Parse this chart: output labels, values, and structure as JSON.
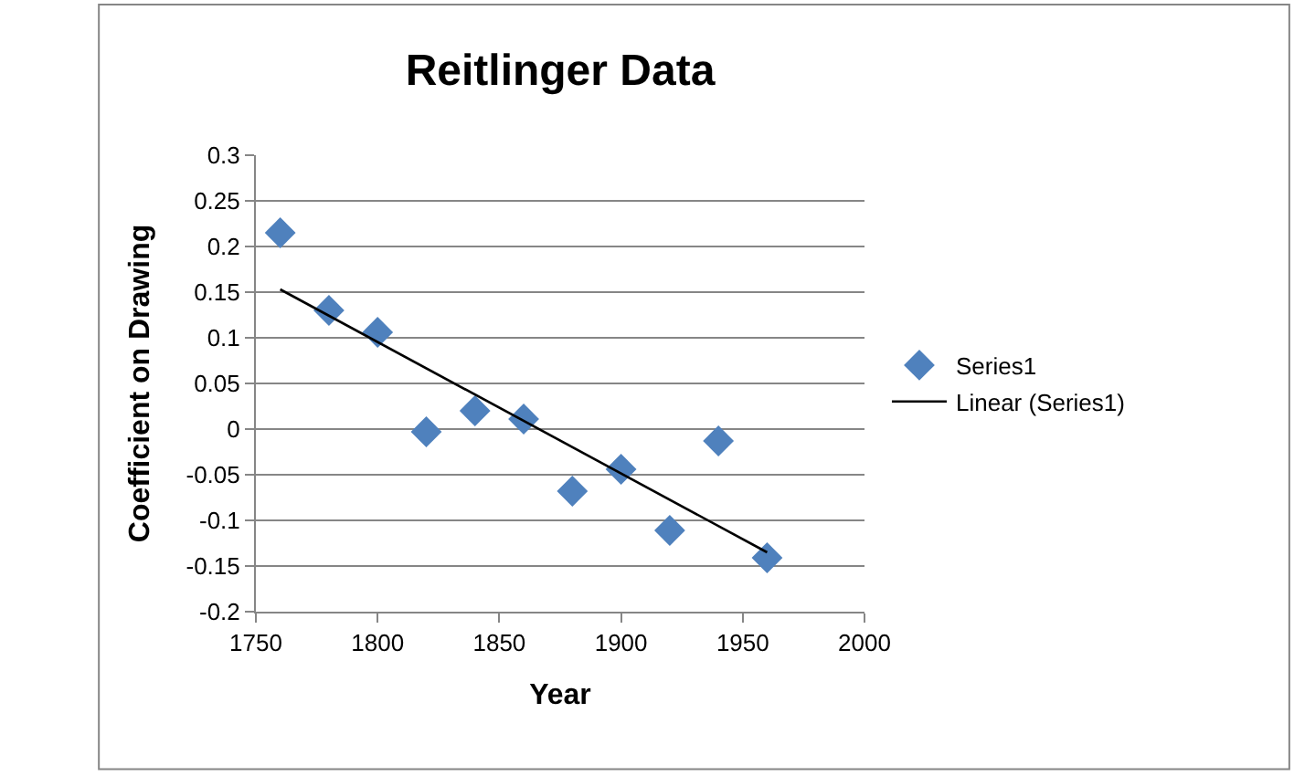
{
  "chart_data": {
    "type": "scatter",
    "title": "Reitlinger Data",
    "xlabel": "Year",
    "ylabel": "Coefficient on Drawing",
    "x": [
      1760,
      1780,
      1800,
      1820,
      1840,
      1860,
      1880,
      1900,
      1920,
      1940,
      1960
    ],
    "series": [
      {
        "name": "Series1",
        "color": "#4f81bd",
        "marker": "diamond",
        "values": [
          0.215,
          0.13,
          0.106,
          -0.003,
          0.02,
          0.011,
          -0.068,
          -0.044,
          -0.111,
          -0.013,
          -0.141
        ]
      },
      {
        "name": "Linear (Series1)",
        "type": "line",
        "color": "#000000",
        "marker": "none",
        "x": [
          1760,
          1960
        ],
        "values": [
          0.153,
          -0.135
        ]
      }
    ],
    "xlim": [
      1750,
      2000
    ],
    "xticks": [
      1750,
      1800,
      1850,
      1900,
      1950,
      2000
    ],
    "ylim": [
      -0.2,
      0.3
    ],
    "yticks": [
      {
        "value": -0.2,
        "label": "-0.2"
      },
      {
        "value": -0.15,
        "label": "-0.15"
      },
      {
        "value": -0.1,
        "label": "-0.1"
      },
      {
        "value": -0.05,
        "label": "-0.05"
      },
      {
        "value": 0,
        "label": "0"
      },
      {
        "value": 0.05,
        "label": "0.05"
      },
      {
        "value": 0.1,
        "label": "0.1"
      },
      {
        "value": 0.15,
        "label": "0.15"
      },
      {
        "value": 0.2,
        "label": "0.2"
      },
      {
        "value": 0.25,
        "label": "0.25"
      },
      {
        "value": 0.3,
        "label": "0.3"
      }
    ],
    "grid": "y",
    "legend": "right"
  }
}
